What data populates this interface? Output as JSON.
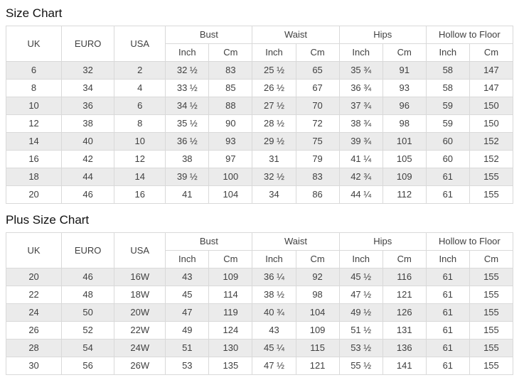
{
  "colors": {
    "border": "#d9d9d9",
    "text": "#404040",
    "stripe": "#ebebeb",
    "title": "#111111",
    "background": "#ffffff"
  },
  "size_chart": {
    "title": "Size Chart",
    "header": {
      "uk": "UK",
      "euro": "EURO",
      "usa": "USA",
      "groups": [
        "Bust",
        "Waist",
        "Hips",
        "Hollow to Floor"
      ],
      "subheaders": [
        "Inch",
        "Cm"
      ]
    },
    "rows": [
      [
        "6",
        "32",
        "2",
        "32 ½",
        "83",
        "25 ½",
        "65",
        "35 ¾",
        "91",
        "58",
        "147"
      ],
      [
        "8",
        "34",
        "4",
        "33 ½",
        "85",
        "26 ½",
        "67",
        "36 ¾",
        "93",
        "58",
        "147"
      ],
      [
        "10",
        "36",
        "6",
        "34 ½",
        "88",
        "27 ½",
        "70",
        "37 ¾",
        "96",
        "59",
        "150"
      ],
      [
        "12",
        "38",
        "8",
        "35 ½",
        "90",
        "28 ½",
        "72",
        "38 ¾",
        "98",
        "59",
        "150"
      ],
      [
        "14",
        "40",
        "10",
        "36 ½",
        "93",
        "29 ½",
        "75",
        "39 ¾",
        "101",
        "60",
        "152"
      ],
      [
        "16",
        "42",
        "12",
        "38",
        "97",
        "31",
        "79",
        "41 ¼",
        "105",
        "60",
        "152"
      ],
      [
        "18",
        "44",
        "14",
        "39 ½",
        "100",
        "32 ½",
        "83",
        "42 ¾",
        "109",
        "61",
        "155"
      ],
      [
        "20",
        "46",
        "16",
        "41",
        "104",
        "34",
        "86",
        "44 ¼",
        "112",
        "61",
        "155"
      ]
    ]
  },
  "plus_size_chart": {
    "title": "Plus Size Chart",
    "header": {
      "uk": "UK",
      "euro": "EURO",
      "usa": "USA",
      "groups": [
        "Bust",
        "Waist",
        "Hips",
        "Hollow to Floor"
      ],
      "subheaders": [
        "Inch",
        "Cm"
      ]
    },
    "rows": [
      [
        "20",
        "46",
        "16W",
        "43",
        "109",
        "36 ¼",
        "92",
        "45 ½",
        "116",
        "61",
        "155"
      ],
      [
        "22",
        "48",
        "18W",
        "45",
        "114",
        "38 ½",
        "98",
        "47 ½",
        "121",
        "61",
        "155"
      ],
      [
        "24",
        "50",
        "20W",
        "47",
        "119",
        "40 ¾",
        "104",
        "49 ½",
        "126",
        "61",
        "155"
      ],
      [
        "26",
        "52",
        "22W",
        "49",
        "124",
        "43",
        "109",
        "51 ½",
        "131",
        "61",
        "155"
      ],
      [
        "28",
        "54",
        "24W",
        "51",
        "130",
        "45 ¼",
        "115",
        "53 ½",
        "136",
        "61",
        "155"
      ],
      [
        "30",
        "56",
        "26W",
        "53",
        "135",
        "47 ½",
        "121",
        "55 ½",
        "141",
        "61",
        "155"
      ]
    ]
  }
}
